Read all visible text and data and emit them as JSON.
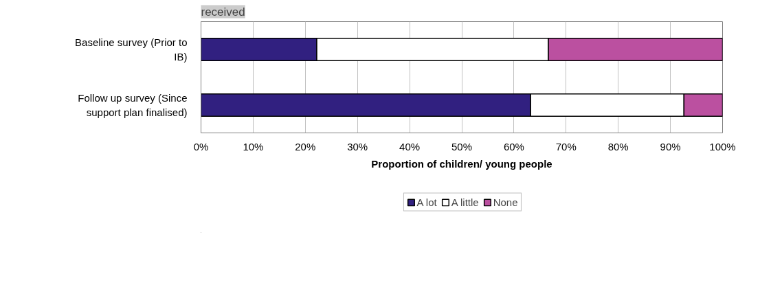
{
  "chart_data": {
    "type": "bar",
    "orientation": "horizontal",
    "stacked": true,
    "title": "received",
    "categories": [
      "Baseline survey (Prior to IB)",
      "Follow up survey (Since support plan finalised)"
    ],
    "series": [
      {
        "name": "A lot",
        "color": "#312080",
        "values": [
          22.2,
          63.2
        ]
      },
      {
        "name": "A little",
        "color": "#ffffff",
        "values": [
          44.4,
          29.4
        ]
      },
      {
        "name": "None",
        "color": "#bb50a0",
        "values": [
          33.4,
          7.4
        ]
      }
    ],
    "xlabel": "Proportion of children/ young people",
    "xlim": [
      0,
      100
    ],
    "xticks": [
      {
        "value": 0,
        "label": "0%"
      },
      {
        "value": 10,
        "label": "10%"
      },
      {
        "value": 20,
        "label": "20%"
      },
      {
        "value": 30,
        "label": "30%"
      },
      {
        "value": 40,
        "label": "40%"
      },
      {
        "value": 50,
        "label": "50%"
      },
      {
        "value": 60,
        "label": "60%"
      },
      {
        "value": 70,
        "label": "70%"
      },
      {
        "value": 80,
        "label": "80%"
      },
      {
        "value": 90,
        "label": "90%"
      },
      {
        "value": 100,
        "label": "100%"
      }
    ],
    "grid": "x",
    "legend": "bottom"
  }
}
